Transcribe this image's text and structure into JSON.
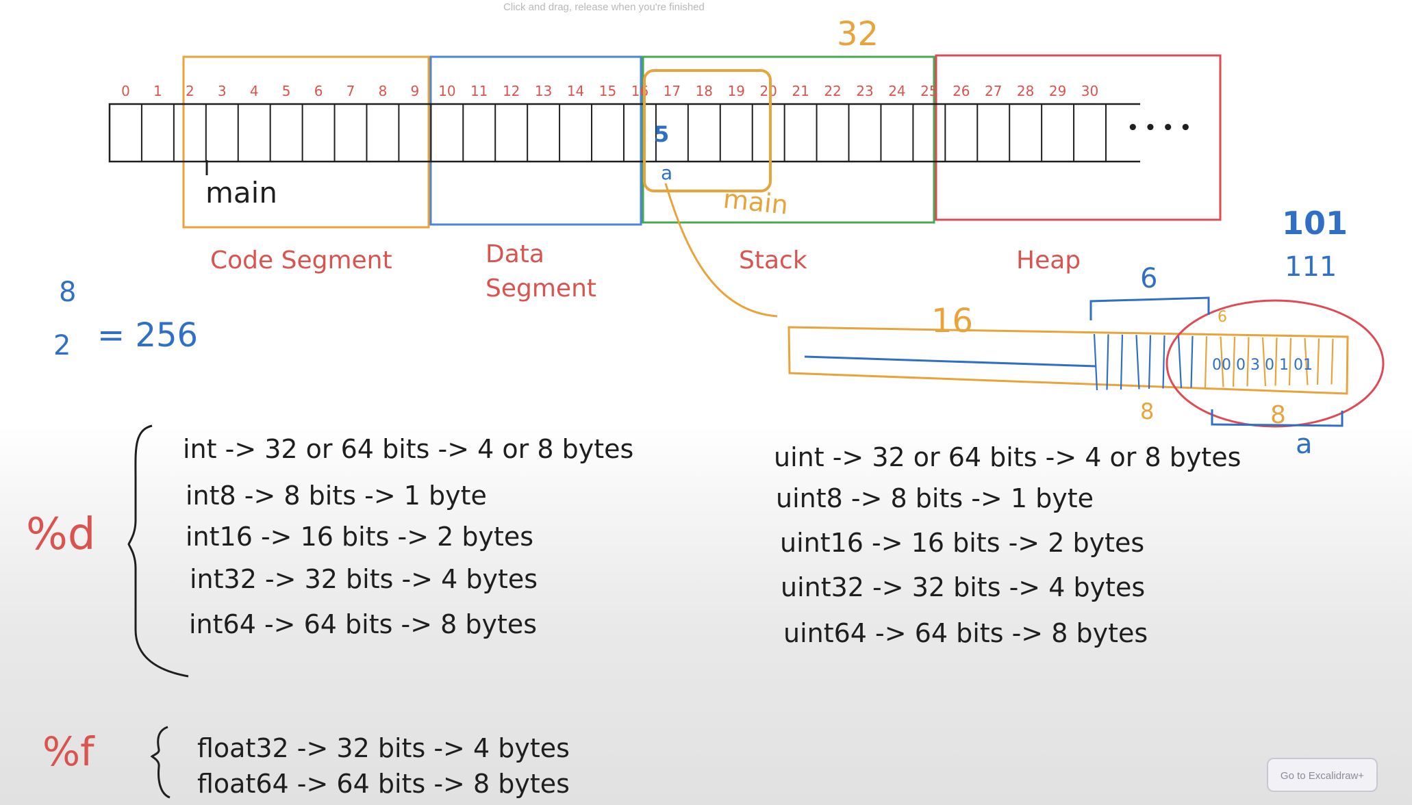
{
  "ui": {
    "hint": "Click and drag, release when you're finished",
    "go_button": "Go to Excalidraw+",
    "corner_icon": "help-icon"
  },
  "colors": {
    "code": "#e8a33a",
    "data": "#4a86d4",
    "stack": "#47a851",
    "heap": "#df4a55",
    "red_text": "#d9534f",
    "ink": "#1e1e1e",
    "blue": "#2f6fc5",
    "orange": "#e8a33a"
  },
  "memory": {
    "cell_indices": [
      "0",
      "1",
      "2",
      "3",
      "4",
      "5",
      "6",
      "7",
      "8",
      "9",
      "10",
      "11",
      "12",
      "13",
      "14",
      "15",
      "16",
      "17",
      "18",
      "19",
      "20",
      "21",
      "22",
      "23",
      "24",
      "25",
      "26",
      "27",
      "28",
      "29",
      "30"
    ],
    "ellipsis": "• • • •",
    "segments": [
      {
        "id": "code",
        "label": "Code Segment"
      },
      {
        "id": "data",
        "label": "Data Segment"
      },
      {
        "id": "stack",
        "label": "Stack"
      },
      {
        "id": "heap",
        "label": "Heap"
      }
    ],
    "annotations": {
      "main": "main",
      "stack_main": "main",
      "top_32": "32",
      "cell_value": "5",
      "cell_var": "a"
    }
  },
  "math": {
    "exp": "8",
    "base": "2",
    "result": "= 256"
  },
  "bits": {
    "len_16": "16",
    "len_6": "6",
    "len_8a": "8",
    "len_8b": "8",
    "var_a": "a",
    "binary_101": "101",
    "binary_111": "111",
    "bits_text": "00 0 3 0 1 01",
    "small_6": "6"
  },
  "format": {
    "d": "%d",
    "f": "%f"
  },
  "types_signed": [
    "int -> 32 or 64 bits -> 4 or 8 bytes",
    "int8 -> 8 bits -> 1 byte",
    "int16 -> 16 bits -> 2 bytes",
    "int32 -> 32 bits -> 4 bytes",
    "int64 -> 64 bits -> 8 bytes"
  ],
  "types_unsigned": [
    "uint -> 32 or 64 bits -> 4 or 8 bytes",
    "uint8 -> 8 bits -> 1 byte",
    "uint16 -> 16 bits -> 2 bytes",
    "uint32 -> 32 bits -> 4 bytes",
    "uint64 -> 64 bits -> 8 bytes"
  ],
  "types_float": [
    "float32 -> 32 bits -> 4 bytes",
    "float64 -> 64 bits -> 8 bytes"
  ]
}
